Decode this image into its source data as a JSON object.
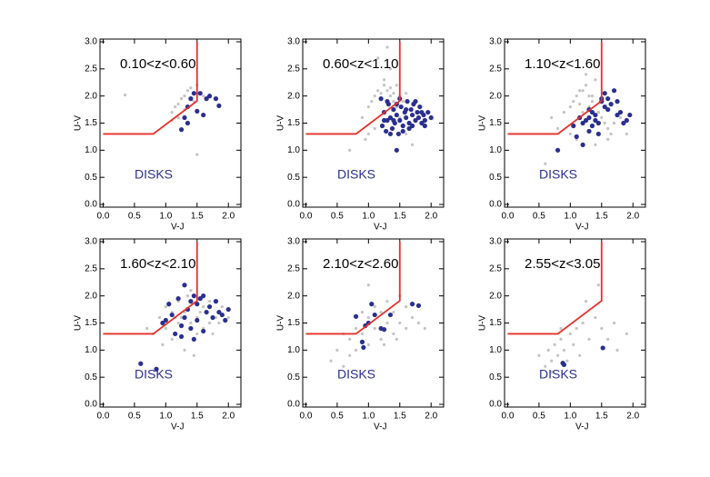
{
  "chart_data": [
    {
      "type": "scatter",
      "title": "0.10<z<0.60",
      "annotation": "DISKS",
      "x_label": "V-J",
      "y_label": "U-V",
      "xlim": [
        -0.05,
        2.2
      ],
      "ylim": [
        -0.05,
        3.05
      ],
      "xticks": [
        {
          "value": 0,
          "label": "0.0"
        },
        0.5,
        {
          "value": 1,
          "label": "1.0"
        },
        1.5,
        {
          "value": 2,
          "label": "2.0"
        }
      ],
      "yticks": [
        {
          "value": 0,
          "label": "0.0"
        },
        0.5,
        {
          "value": 1,
          "label": "1.0"
        },
        1.5,
        {
          "value": 2,
          "label": "2.0"
        },
        2.5,
        {
          "value": 3,
          "label": "3.0"
        }
      ],
      "series": [
        {
          "kind": "points",
          "size": 1.6,
          "color": "#c4c4c4",
          "x": [
            1.1,
            1.15,
            1.2,
            1.25,
            1.3,
            1.35,
            1.4,
            1.45,
            1.5,
            1.2,
            1.3,
            1.6,
            0.35,
            1.5,
            1.1
          ],
          "y": [
            1.7,
            1.8,
            1.85,
            1.95,
            2.0,
            2.1,
            2.15,
            1.9,
            2.2,
            1.6,
            1.75,
            2.0,
            2.02,
            0.92,
            1.55
          ]
        },
        {
          "kind": "points",
          "size": 2.6,
          "color": "#2b2f8f",
          "x": [
            1.25,
            1.3,
            1.35,
            1.35,
            1.45,
            1.55,
            1.5,
            1.6,
            1.65,
            1.7,
            1.8,
            1.85,
            1.4
          ],
          "y": [
            1.38,
            1.6,
            1.8,
            1.5,
            2.05,
            2.05,
            1.72,
            1.65,
            1.95,
            2.0,
            1.95,
            1.82,
            1.95
          ]
        },
        {
          "kind": "line",
          "color": "#e8302a",
          "x": [
            0,
            0.8,
            1.5,
            1.5
          ],
          "y": [
            1.3,
            1.3,
            1.91,
            3.0
          ]
        }
      ]
    },
    {
      "type": "scatter",
      "title": "0.60<z<1.10",
      "annotation": "DISKS",
      "x_label": "V-J",
      "y_label": "U-V",
      "xlim": [
        -0.05,
        2.2
      ],
      "ylim": [
        -0.05,
        3.05
      ],
      "xticks": [
        {
          "value": 0,
          "label": "0.0"
        },
        0.5,
        {
          "value": 1,
          "label": "1.0"
        },
        1.5,
        {
          "value": 2,
          "label": "2.0"
        }
      ],
      "yticks": [
        {
          "value": 0,
          "label": "0.0"
        },
        0.5,
        {
          "value": 1,
          "label": "1.0"
        },
        1.5,
        {
          "value": 2,
          "label": "2.0"
        },
        2.5,
        {
          "value": 3,
          "label": "3.0"
        }
      ],
      "series": [
        {
          "kind": "points",
          "size": 1.6,
          "color": "#c4c4c4",
          "x": [
            0.9,
            1.0,
            1.05,
            1.1,
            1.15,
            1.2,
            1.2,
            1.25,
            1.3,
            1.3,
            1.35,
            1.35,
            1.4,
            1.4,
            1.45,
            1.5,
            1.5,
            1.55,
            1.6,
            1.1,
            1.0,
            0.95,
            1.25,
            1.35,
            1.45,
            1.6,
            1.7,
            0.7,
            1.15,
            1.3
          ],
          "y": [
            1.6,
            1.8,
            1.9,
            2.0,
            2.1,
            2.05,
            1.95,
            2.2,
            2.1,
            1.9,
            2.15,
            2.0,
            1.9,
            2.05,
            2.2,
            2.0,
            1.6,
            1.9,
            2.05,
            1.4,
            1.3,
            1.2,
            2.3,
            2.5,
            1.8,
            1.3,
            1.1,
            1.0,
            2.7,
            2.9
          ]
        },
        {
          "kind": "points",
          "size": 2.6,
          "color": "#2b2f8f",
          "x": [
            1.22,
            1.25,
            1.28,
            1.3,
            1.32,
            1.35,
            1.38,
            1.4,
            1.42,
            1.45,
            1.48,
            1.5,
            1.52,
            1.55,
            1.58,
            1.6,
            1.62,
            1.65,
            1.68,
            1.7,
            1.72,
            1.75,
            1.78,
            1.8,
            1.82,
            1.85,
            1.88,
            1.9,
            1.95,
            2.0,
            1.3,
            1.35,
            1.4,
            1.5,
            1.55,
            1.6,
            1.7,
            1.75,
            1.85,
            1.9,
            1.25,
            1.45,
            1.65,
            1.45,
            1.2
          ],
          "y": [
            1.45,
            1.7,
            1.35,
            1.55,
            1.85,
            1.6,
            1.4,
            1.75,
            1.5,
            1.65,
            1.3,
            1.55,
            1.8,
            1.45,
            1.7,
            1.6,
            1.9,
            1.5,
            1.75,
            1.65,
            1.85,
            1.55,
            1.7,
            1.6,
            1.8,
            1.5,
            1.65,
            1.55,
            1.7,
            1.6,
            1.9,
            1.3,
            1.55,
            1.95,
            1.35,
            1.75,
            1.45,
            1.9,
            1.7,
            1.45,
            1.55,
            1.85,
            1.4,
            1.0,
            1.95
          ]
        },
        {
          "kind": "line",
          "color": "#e8302a",
          "x": [
            0,
            0.8,
            1.5,
            1.5
          ],
          "y": [
            1.3,
            1.3,
            1.91,
            3.0
          ]
        }
      ]
    },
    {
      "type": "scatter",
      "title": "1.10<z<1.60",
      "annotation": "DISKS",
      "x_label": "V-J",
      "y_label": "U-V",
      "xlim": [
        -0.05,
        2.2
      ],
      "ylim": [
        -0.05,
        3.05
      ],
      "xticks": [
        {
          "value": 0,
          "label": "0.0"
        },
        0.5,
        {
          "value": 1,
          "label": "1.0"
        },
        1.5,
        {
          "value": 2,
          "label": "2.0"
        }
      ],
      "yticks": [
        {
          "value": 0,
          "label": "0.0"
        },
        0.5,
        {
          "value": 1,
          "label": "1.0"
        },
        1.5,
        {
          "value": 2,
          "label": "2.0"
        },
        2.5,
        {
          "value": 3,
          "label": "3.0"
        }
      ],
      "series": [
        {
          "kind": "points",
          "size": 1.6,
          "color": "#c4c4c4",
          "x": [
            0.7,
            0.9,
            1.0,
            1.05,
            1.1,
            1.15,
            1.2,
            1.2,
            1.25,
            1.3,
            1.3,
            1.35,
            1.4,
            1.45,
            1.5,
            1.55,
            1.6,
            1.65,
            1.7,
            1.8,
            0.6,
            0.8,
            1.0,
            1.1,
            1.4,
            1.6,
            1.9,
            1.25,
            1.15,
            1.35
          ],
          "y": [
            1.6,
            1.7,
            1.8,
            1.9,
            2.0,
            1.85,
            2.1,
            1.7,
            2.2,
            2.0,
            1.8,
            1.9,
            2.3,
            1.7,
            1.6,
            1.5,
            1.4,
            1.3,
            1.5,
            1.6,
            0.75,
            1.4,
            1.3,
            1.2,
            1.1,
            1.2,
            1.3,
            2.4,
            2.1,
            2.0
          ]
        },
        {
          "kind": "points",
          "size": 2.6,
          "color": "#2b2f8f",
          "x": [
            0.8,
            1.05,
            1.1,
            1.15,
            1.2,
            1.25,
            1.3,
            1.3,
            1.35,
            1.35,
            1.4,
            1.4,
            1.45,
            1.5,
            1.5,
            1.55,
            1.6,
            1.6,
            1.65,
            1.7,
            1.75,
            1.8,
            1.85,
            1.9,
            1.95,
            1.2,
            1.3,
            1.45,
            1.55,
            1.75
          ],
          "y": [
            1.0,
            1.45,
            1.25,
            1.6,
            1.5,
            1.55,
            1.35,
            1.6,
            1.45,
            1.7,
            1.55,
            1.65,
            1.5,
            1.9,
            1.95,
            1.8,
            1.95,
            1.75,
            1.85,
            2.1,
            1.9,
            1.7,
            1.5,
            1.55,
            1.65,
            1.1,
            1.75,
            1.3,
            2.05,
            1.65
          ]
        },
        {
          "kind": "line",
          "color": "#e8302a",
          "x": [
            0,
            0.8,
            1.5,
            1.5
          ],
          "y": [
            1.3,
            1.3,
            1.91,
            3.0
          ]
        }
      ]
    },
    {
      "type": "scatter",
      "title": "1.60<z<2.10",
      "annotation": "DISKS",
      "x_label": "V-J",
      "y_label": "U-V",
      "xlim": [
        -0.05,
        2.2
      ],
      "ylim": [
        -0.05,
        3.05
      ],
      "xticks": [
        {
          "value": 0,
          "label": "0.0"
        },
        0.5,
        {
          "value": 1,
          "label": "1.0"
        },
        1.5,
        {
          "value": 2,
          "label": "2.0"
        }
      ],
      "yticks": [
        {
          "value": 0,
          "label": "0.0"
        },
        0.5,
        {
          "value": 1,
          "label": "1.0"
        },
        1.5,
        {
          "value": 2,
          "label": "2.0"
        },
        2.5,
        {
          "value": 3,
          "label": "3.0"
        }
      ],
      "series": [
        {
          "kind": "points",
          "size": 1.6,
          "color": "#c4c4c4",
          "x": [
            0.8,
            0.9,
            1.0,
            1.0,
            1.1,
            1.1,
            1.2,
            1.2,
            1.3,
            1.3,
            1.4,
            1.4,
            1.5,
            1.5,
            1.6,
            1.6,
            1.7,
            1.7,
            1.8,
            1.9,
            2.0,
            0.7,
            0.95,
            1.15,
            1.35,
            1.55,
            1.75,
            1.25,
            1.45,
            1.85
          ],
          "y": [
            1.3,
            1.6,
            1.4,
            1.8,
            1.2,
            1.7,
            1.5,
            1.9,
            1.0,
            1.7,
            1.5,
            2.1,
            1.6,
            1.3,
            1.8,
            1.4,
            1.9,
            1.5,
            1.6,
            1.8,
            1.6,
            1.4,
            1.1,
            1.6,
            2.0,
            1.7,
            1.3,
            1.6,
            0.9,
            1.5
          ]
        },
        {
          "kind": "points",
          "size": 2.6,
          "color": "#2b2f8f",
          "x": [
            0.6,
            0.85,
            0.95,
            1.0,
            1.05,
            1.1,
            1.15,
            1.2,
            1.25,
            1.3,
            1.3,
            1.35,
            1.4,
            1.4,
            1.45,
            1.5,
            1.5,
            1.55,
            1.6,
            1.65,
            1.7,
            1.75,
            1.8,
            1.85,
            1.9,
            1.95,
            2.0,
            1.25,
            1.45,
            1.6
          ],
          "y": [
            0.75,
            0.65,
            1.5,
            1.55,
            1.85,
            1.65,
            1.3,
            1.95,
            1.45,
            2.2,
            1.6,
            1.75,
            1.9,
            1.4,
            2.0,
            1.85,
            1.55,
            1.95,
            2.0,
            1.7,
            1.8,
            1.6,
            1.9,
            1.7,
            1.65,
            1.55,
            1.75,
            1.25,
            1.2,
            1.35
          ]
        },
        {
          "kind": "line",
          "color": "#e8302a",
          "x": [
            0,
            0.8,
            1.5,
            1.5
          ],
          "y": [
            1.3,
            1.3,
            1.91,
            3.0
          ]
        }
      ]
    },
    {
      "type": "scatter",
      "title": "2.10<z<2.60",
      "annotation": "DISKS",
      "x_label": "V-J",
      "y_label": "U-V",
      "xlim": [
        -0.05,
        2.2
      ],
      "ylim": [
        -0.05,
        3.05
      ],
      "xticks": [
        {
          "value": 0,
          "label": "0.0"
        },
        0.5,
        {
          "value": 1,
          "label": "1.0"
        },
        1.5,
        {
          "value": 2,
          "label": "2.0"
        }
      ],
      "yticks": [
        {
          "value": 0,
          "label": "0.0"
        },
        0.5,
        {
          "value": 1,
          "label": "1.0"
        },
        1.5,
        {
          "value": 2,
          "label": "2.0"
        },
        2.5,
        {
          "value": 3,
          "label": "3.0"
        }
      ],
      "series": [
        {
          "kind": "points",
          "size": 1.6,
          "color": "#c4c4c4",
          "x": [
            0.4,
            0.5,
            0.6,
            0.7,
            0.7,
            0.8,
            0.8,
            0.9,
            0.9,
            1.0,
            1.0,
            1.1,
            1.1,
            1.2,
            1.2,
            1.3,
            1.3,
            1.4,
            1.4,
            1.5,
            1.5,
            1.6,
            1.6,
            1.7,
            1.8,
            1.9,
            0.6,
            1.0,
            1.25,
            1.45
          ],
          "y": [
            0.8,
            1.0,
            0.7,
            1.2,
            0.9,
            1.4,
            1.0,
            1.3,
            1.7,
            1.1,
            1.6,
            1.4,
            1.8,
            1.2,
            1.7,
            1.5,
            1.9,
            1.3,
            1.7,
            1.5,
            2.0,
            1.4,
            1.8,
            1.6,
            1.5,
            1.4,
            1.3,
            2.2,
            1.1,
            1.2
          ]
        },
        {
          "kind": "points",
          "size": 2.6,
          "color": "#2b2f8f",
          "x": [
            0.8,
            0.9,
            0.92,
            0.95,
            1.0,
            1.05,
            1.1,
            1.2,
            1.25,
            1.35,
            1.7,
            1.8
          ],
          "y": [
            1.62,
            1.15,
            1.05,
            1.45,
            1.5,
            1.85,
            1.65,
            1.4,
            1.38,
            1.65,
            1.85,
            1.82
          ]
        },
        {
          "kind": "line",
          "color": "#e8302a",
          "x": [
            0,
            0.8,
            1.5,
            1.5
          ],
          "y": [
            1.3,
            1.3,
            1.91,
            3.0
          ]
        }
      ]
    },
    {
      "type": "scatter",
      "title": "2.55<z<3.05",
      "annotation": "DISKS",
      "x_label": "V-J",
      "y_label": "U-V",
      "xlim": [
        -0.05,
        2.2
      ],
      "ylim": [
        -0.05,
        3.05
      ],
      "xticks": [
        {
          "value": 0,
          "label": "0.0"
        },
        0.5,
        {
          "value": 1,
          "label": "1.0"
        },
        1.5,
        {
          "value": 2,
          "label": "2.0"
        }
      ],
      "yticks": [
        {
          "value": 0,
          "label": "0.0"
        },
        0.5,
        {
          "value": 1,
          "label": "1.0"
        },
        1.5,
        {
          "value": 2,
          "label": "2.0"
        },
        2.5,
        {
          "value": 3,
          "label": "3.0"
        }
      ],
      "series": [
        {
          "kind": "points",
          "size": 1.6,
          "color": "#c4c4c4",
          "x": [
            0.5,
            0.6,
            0.65,
            0.7,
            0.75,
            0.8,
            0.85,
            0.9,
            0.95,
            1.0,
            1.05,
            1.1,
            1.15,
            1.2,
            1.3,
            1.4,
            1.5,
            1.6,
            1.7,
            1.9,
            0.7,
            0.85,
            1.25,
            1.45,
            1.75
          ],
          "y": [
            0.9,
            0.7,
            1.0,
            0.8,
            1.1,
            0.9,
            1.2,
            1.0,
            0.8,
            1.3,
            1.1,
            1.4,
            0.9,
            1.5,
            1.2,
            1.6,
            1.4,
            1.2,
            1.5,
            1.3,
            0.6,
            1.4,
            1.9,
            2.2,
            1.0
          ]
        },
        {
          "kind": "points",
          "size": 2.6,
          "color": "#2b2f8f",
          "x": [
            0.88,
            0.9,
            1.52
          ],
          "y": [
            0.76,
            0.73,
            1.04
          ]
        },
        {
          "kind": "line",
          "color": "#e8302a",
          "x": [
            0,
            0.8,
            1.5,
            1.5
          ],
          "y": [
            1.3,
            1.3,
            1.91,
            3.0
          ]
        }
      ]
    }
  ]
}
